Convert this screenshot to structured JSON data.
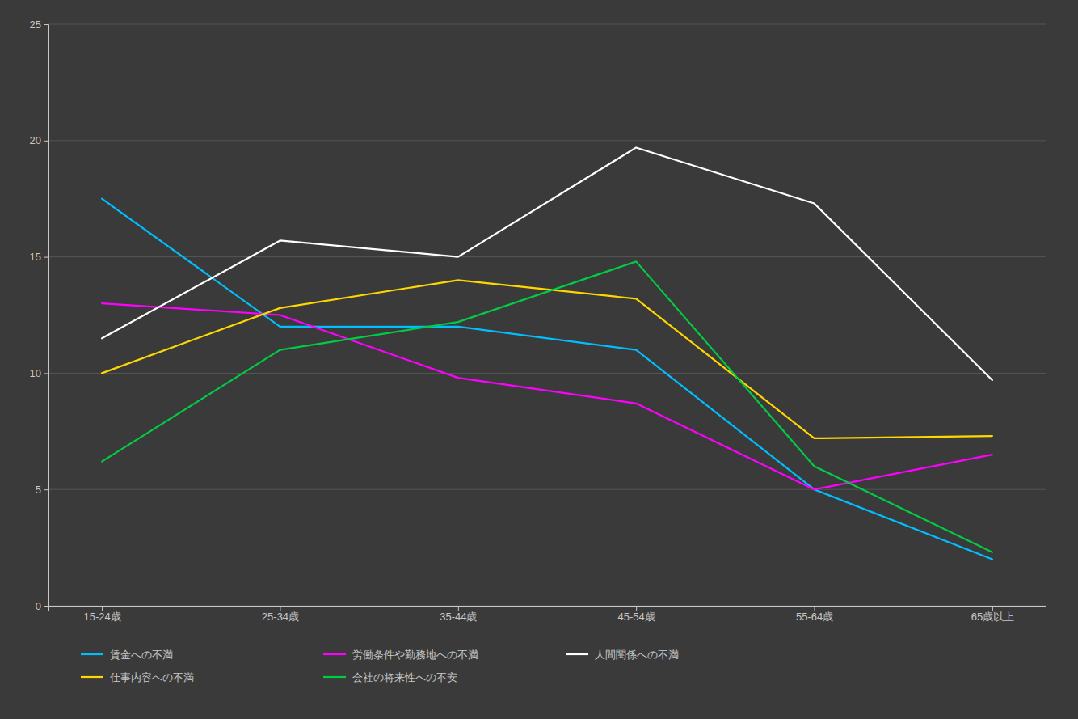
{
  "chart_data": {
    "type": "line",
    "categories": [
      "15-24歳",
      "25-34歳",
      "35-44歳",
      "45-54歳",
      "55-64歳",
      "65歳以上"
    ],
    "series": [
      {
        "name": "賃金への不満",
        "color": "#00BFFF",
        "values": [
          17.5,
          12.0,
          12.0,
          11.0,
          5.0,
          2.0
        ]
      },
      {
        "name": "労働条件や勤務地への不満",
        "color": "#FF00FF",
        "values": [
          13.0,
          12.5,
          9.8,
          8.7,
          5.0,
          6.5
        ]
      },
      {
        "name": "人間関係への不満",
        "color": "#FFFFFF",
        "values": [
          11.5,
          15.7,
          15.0,
          19.7,
          17.3,
          9.7
        ]
      },
      {
        "name": "仕事内容への不満",
        "color": "#FFD700",
        "values": [
          10.0,
          12.8,
          14.0,
          13.2,
          7.2,
          7.3
        ]
      },
      {
        "name": "会社の将来性への不安",
        "color": "#00CC44",
        "values": [
          6.2,
          11.0,
          12.2,
          14.8,
          6.0,
          2.3
        ]
      }
    ],
    "ylim": [
      0,
      25
    ],
    "yticks": [
      0,
      5,
      10,
      15,
      20,
      25
    ],
    "grid": true,
    "legend": "bottom"
  }
}
